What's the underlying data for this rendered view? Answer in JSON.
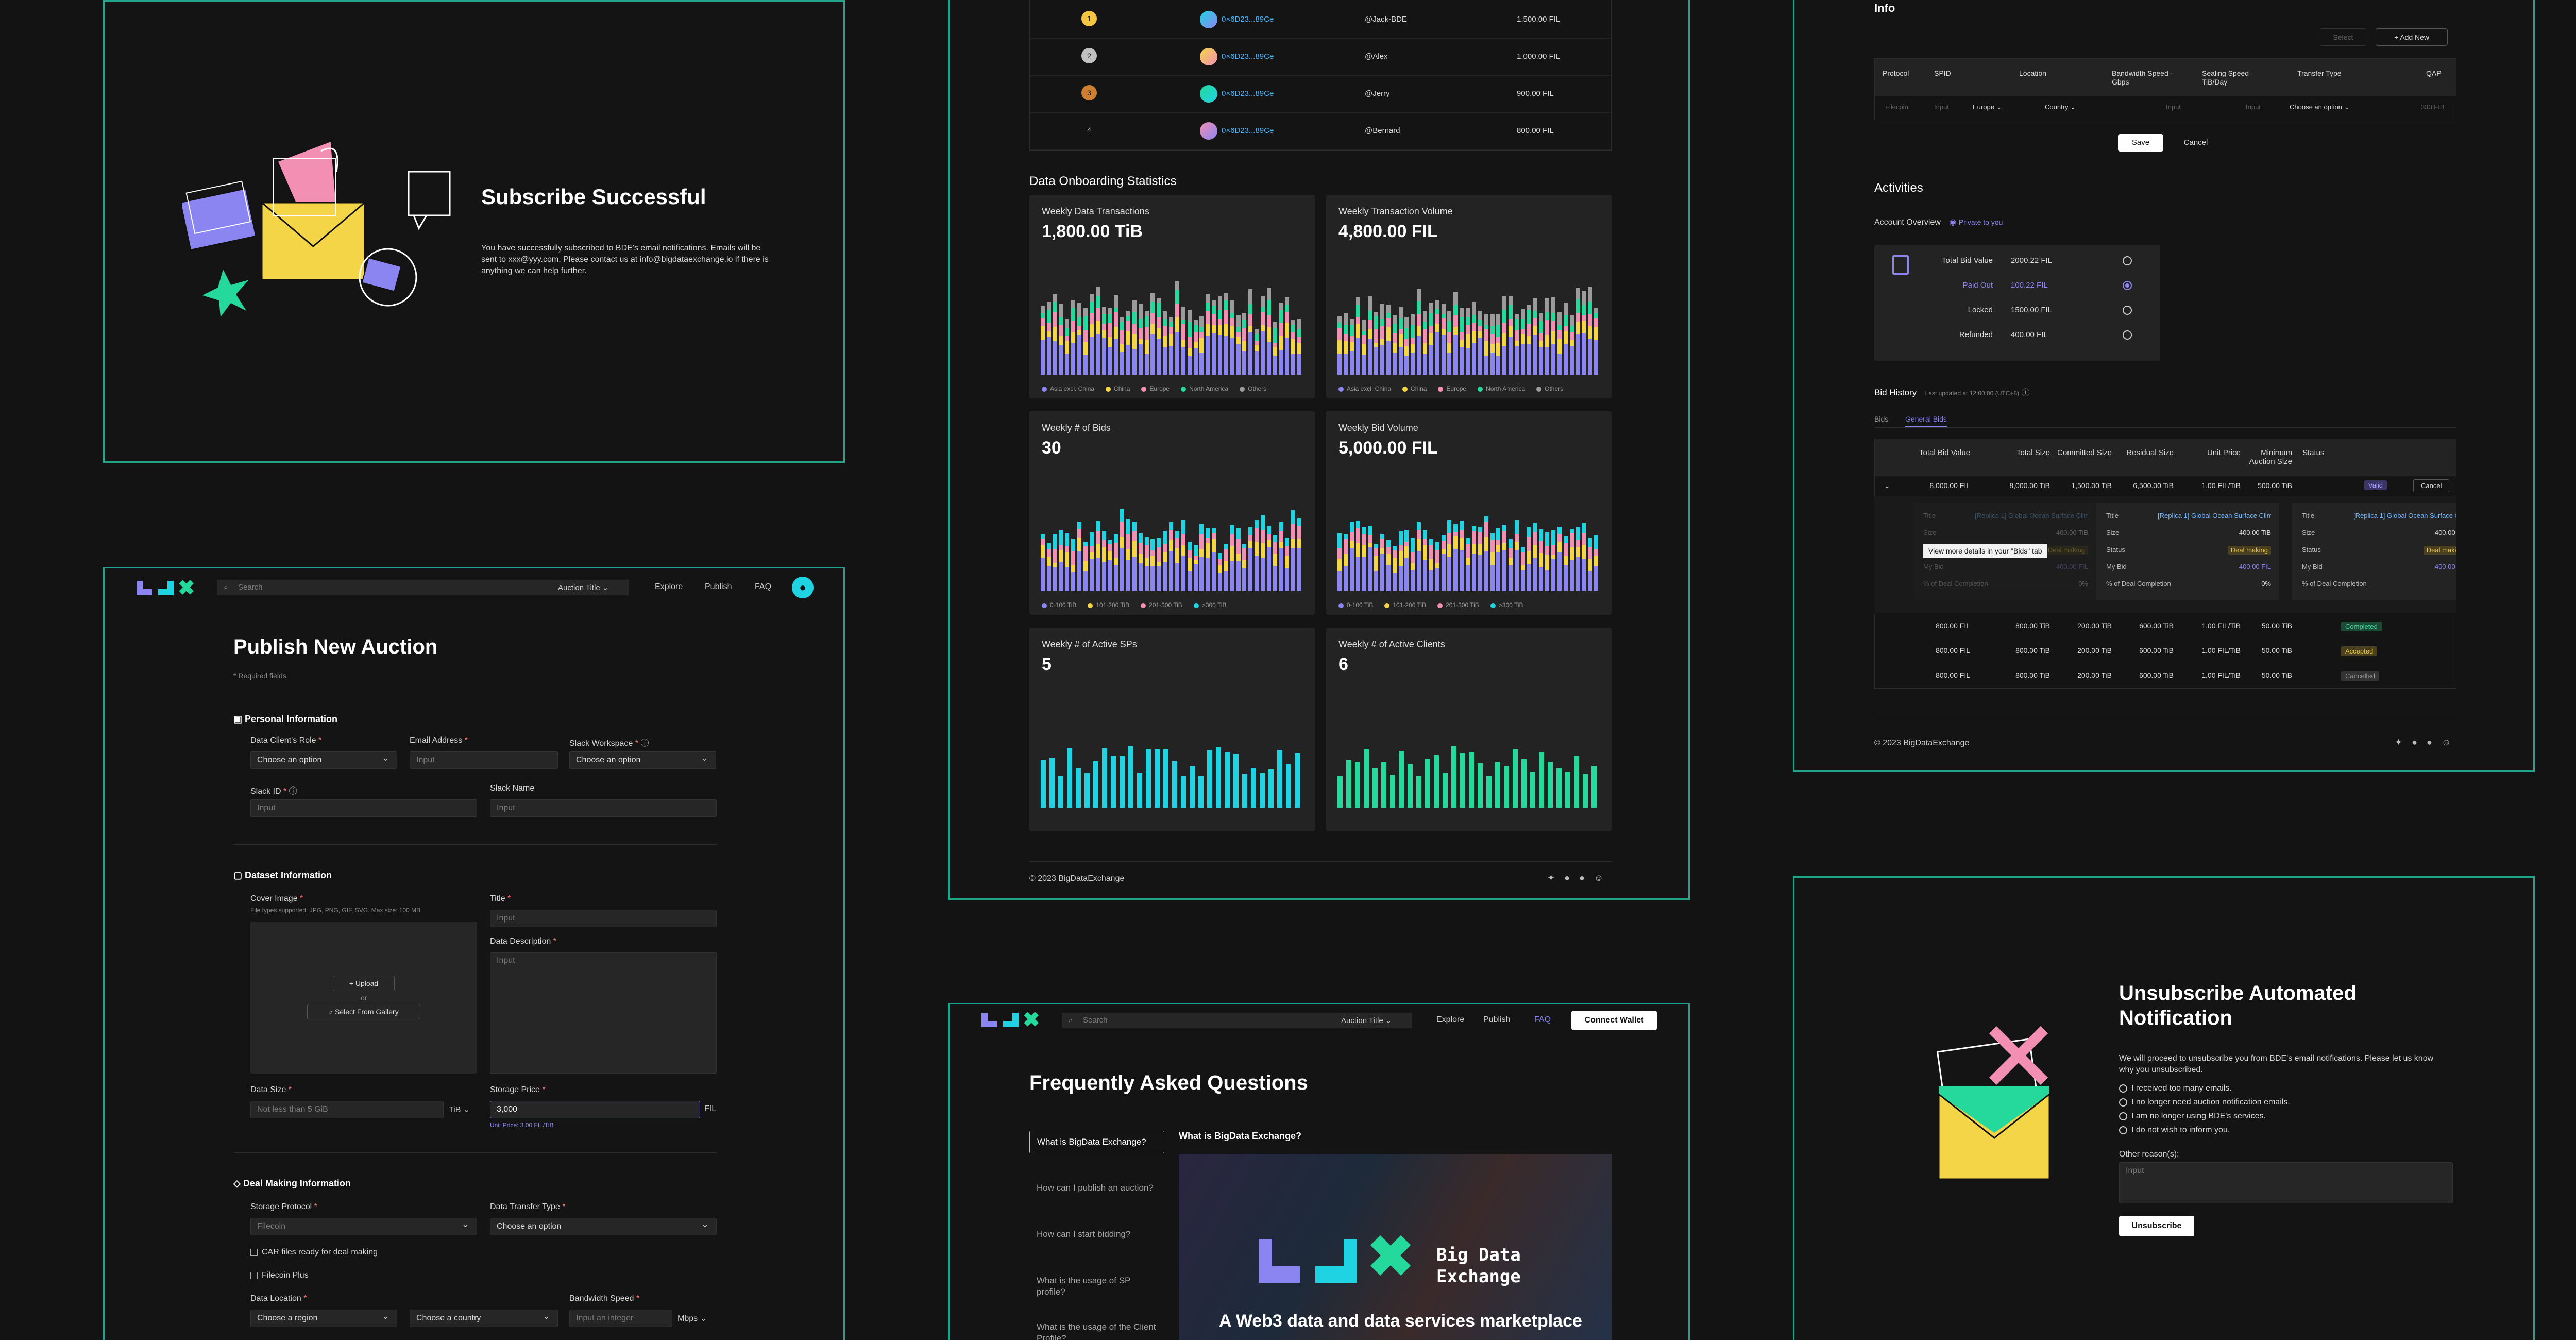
{
  "subscribe": {
    "title": "Subscribe Successful",
    "body": "You have successfully subscribed to BDE's email notifications. Emails will be sent to xxx@yyy.com. Please contact us at info@bigdataexchange.io if there is anything we can help further."
  },
  "header": {
    "search_placeholder": "Search",
    "search_scope": "Auction Title",
    "nav": [
      "Explore",
      "Publish",
      "FAQ"
    ],
    "connect_wallet": "Connect Wallet"
  },
  "publish": {
    "title": "Publish New Auction",
    "required_note": "* Required fields",
    "personal_section": "Personal Information",
    "dataset_section": "Dataset Information",
    "deal_section": "Deal Making Information",
    "fields": {
      "role_label": "Data Client's Role",
      "role_value": "Choose an option",
      "email_label": "Email Address",
      "email_value": "Input",
      "slack_ws_label": "Slack Workspace",
      "slack_ws_value": "Choose an option",
      "slack_id_label": "Slack ID",
      "slack_id_value": "Input",
      "slack_name_label": "Slack Name",
      "slack_name_value": "Input",
      "cover_label": "Cover Image",
      "cover_hint": "File types supported: JPG, PNG, GIF, SVG. Max size: 100 MB",
      "upload": "Upload",
      "or": "or",
      "gallery": "Select From Gallery",
      "title_label": "Title",
      "title_value": "Input",
      "desc_label": "Data Description",
      "desc_value": "Input",
      "size_label": "Data Size",
      "size_value": "Not less than 5 GiB",
      "size_unit": "TiB",
      "price_label": "Storage Price",
      "price_value": "3,000",
      "price_unit": "FIL",
      "unit_price": "Unit Price: 3.00 FIL/TiB",
      "protocol_label": "Storage Protocol",
      "protocol_value": "Filecoin",
      "transfer_label": "Data Transfer Type",
      "transfer_value": "Choose an option",
      "car_ready": "CAR files ready for deal making",
      "filecoin_plus": "Filecoin Plus",
      "location_label": "Data Location",
      "region_value": "Choose a region",
      "country_value": "Choose a country",
      "bandwidth_label": "Bandwidth Speed",
      "bandwidth_value": "Input an integer",
      "bandwidth_unit": "Mbps"
    }
  },
  "leaderboard": [
    {
      "rank": "1",
      "addr": "0×6D23...89Ce",
      "name": "@Jack-BDE",
      "amount": "1,500.00 FIL"
    },
    {
      "rank": "2",
      "addr": "0×6D23...89Ce",
      "name": "@Alex",
      "amount": "1,000.00 FIL"
    },
    {
      "rank": "3",
      "addr": "0×6D23...89Ce",
      "name": "@Jerry",
      "amount": "900.00 FIL"
    },
    {
      "rank": "4",
      "addr": "0×6D23...89Ce",
      "name": "@Bernard",
      "amount": "800.00 FIL"
    }
  ],
  "stats": {
    "title": "Data Onboarding Statistics",
    "cards": [
      {
        "title": "Weekly Data Transactions",
        "value": "1,800.00 TiB"
      },
      {
        "title": "Weekly Transaction Volume",
        "value": "4,800.00 FIL"
      },
      {
        "title": "Weekly # of Bids",
        "value": "30"
      },
      {
        "title": "Weekly Bid Volume",
        "value": "5,000.00 FIL"
      },
      {
        "title": "Weekly # of Active SPs",
        "value": "5"
      },
      {
        "title": "Weekly # of Active Clients",
        "value": "6"
      }
    ],
    "region_legend": [
      "Asia excl. China",
      "China",
      "Europe",
      "North America",
      "Others"
    ],
    "size_legend": [
      "0-100 TiB",
      "101-200 TiB",
      "201-300 TiB",
      ">300 TiB"
    ],
    "footer": "© 2023 BigDataExchange"
  },
  "chart_data": [
    {
      "type": "bar",
      "title": "Weekly Data Transactions",
      "series": [
        {
          "name": "Asia excl. China",
          "values": [
            3,
            4,
            2,
            5,
            4,
            3,
            5,
            2,
            4,
            3,
            5,
            4,
            3,
            5,
            4,
            2,
            3,
            4,
            5,
            3,
            4,
            2,
            3,
            5,
            4,
            3,
            2,
            4,
            3,
            5,
            4,
            3,
            2,
            4,
            3,
            4,
            5,
            3,
            4,
            3,
            2,
            4,
            3
          ]
        },
        {
          "name": "China",
          "values": [
            1,
            2,
            1,
            1,
            2,
            1,
            1,
            2,
            1,
            1,
            2,
            1,
            1,
            2,
            1,
            1,
            2,
            1,
            1,
            2,
            1,
            1,
            2,
            1,
            1,
            2,
            1,
            1,
            2,
            1,
            1,
            2,
            1,
            1,
            2,
            1,
            1,
            2,
            1,
            1,
            2,
            1,
            1
          ]
        }
      ]
    },
    {
      "type": "bar",
      "title": "Weekly # of Active SPs",
      "values": [
        4,
        5,
        3,
        4,
        5,
        4,
        3,
        5,
        4,
        3,
        5,
        4,
        4,
        5,
        3,
        4,
        5,
        4,
        3,
        5,
        4,
        3,
        5,
        4,
        4,
        5,
        3,
        4,
        5,
        4
      ]
    }
  ],
  "faq": {
    "title": "Frequently Asked Questions",
    "items": [
      "What is BigData Exchange?",
      "How can I publish an auction?",
      "How can I start bidding?",
      "What is the usage of SP profile?",
      "What is the usage of the Client Profile?"
    ],
    "answer_title": "What is BigData Exchange?",
    "banner_name": "Big Data Exchange",
    "banner_tagline": "A Web3 data and data services marketplace"
  },
  "info": {
    "title": "Info",
    "select": "Select",
    "add_new": "Add New",
    "columns": [
      "Protocol",
      "SPID",
      "Location",
      "Bandwidth Speed · Gbps",
      "Sealing Speed · TiB/Day",
      "Transfer Type",
      "QAP"
    ],
    "row": [
      "Filecoin",
      "Input",
      "Europe",
      "Country",
      "Input",
      "Input",
      "Choose an option",
      "333 FIB"
    ],
    "save": "Save",
    "cancel": "Cancel"
  },
  "activities": {
    "title": "Activities",
    "overview_label": "Account Overview",
    "private": "Private to you",
    "rows": [
      {
        "label": "Total Bid Value",
        "value": "2000.22 FIL"
      },
      {
        "label": "Paid Out",
        "value": "100.22 FIL"
      },
      {
        "label": "Locked",
        "value": "1500.00 FIL"
      },
      {
        "label": "Refunded",
        "value": "400.00 FIL"
      }
    ],
    "bid_history": "Bid History",
    "updated": "Last updated at 12:00:00 (UTC+8)",
    "tabs": [
      "Bids",
      "General Bids"
    ],
    "cols": [
      "Total Bid Value",
      "Total Size",
      "Committed Size",
      "Residual Size",
      "Unit Price",
      "Minimum Auction Size",
      "Status"
    ],
    "main_row": [
      "8,000.00 FIL",
      "8,000.00 TiB",
      "1,500.00 TiB",
      "6,500.00 TiB",
      "1.00 FIL/TiB",
      "500.00 TiB",
      "Valid",
      "Cancel"
    ],
    "tooltip": "View more details in your \"Bids\" tab",
    "sub_title": "[Replica 1] Global Ocean Surface Climate...",
    "sub_size": "400.00 TiB",
    "sub_status": "Deal making",
    "sub_bid": "400.00 FIL",
    "sub_pct": "0%",
    "sub_labels": [
      "Title",
      "Size",
      "Status",
      "My Bid",
      "% of Deal Completion"
    ],
    "rows2": [
      [
        "800.00 FIL",
        "800.00 TiB",
        "200.00 TiB",
        "600.00 TiB",
        "1.00 FIL/TiB",
        "50.00 TiB",
        "Completed"
      ],
      [
        "800.00 FIL",
        "800.00 TiB",
        "200.00 TiB",
        "600.00 TiB",
        "1.00 FIL/TiB",
        "50.00 TiB",
        "Accepted"
      ],
      [
        "800.00 FIL",
        "800.00 TiB",
        "200.00 TiB",
        "600.00 TiB",
        "1.00 FIL/TiB",
        "50.00 TiB",
        "Cancelled"
      ]
    ],
    "footer": "© 2023 BigDataExchange"
  },
  "unsubscribe": {
    "title": "Unsubscribe Automated Notification",
    "body": "We will proceed to unsubscribe you from BDE's email notifications. Please let us know why you unsubscribed.",
    "options": [
      "I received too many emails.",
      "I no longer need auction notification emails.",
      "I am no longer using BDE's services.",
      "I do not wish to inform you."
    ],
    "other_label": "Other reason(s):",
    "other_placeholder": "Input",
    "button": "Unsubscribe"
  },
  "colors": {
    "accent": "#1fa58c",
    "purple": "#8b85f2",
    "cyan": "#1fd3e3",
    "green": "#25d89c",
    "yellow": "#f5d548",
    "pink": "#f28fb2"
  }
}
